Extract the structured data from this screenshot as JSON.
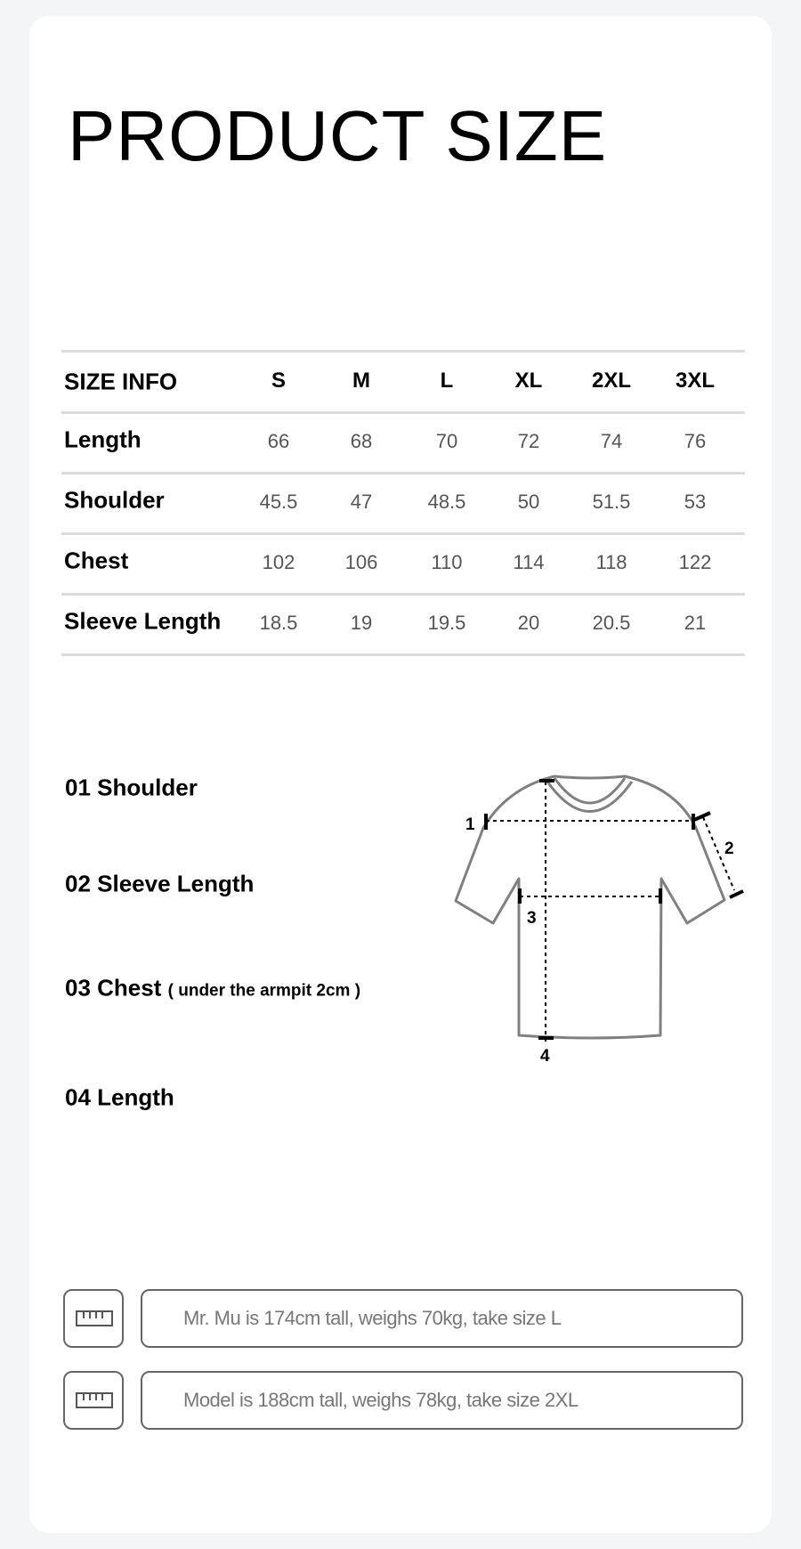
{
  "title": "PRODUCT SIZE",
  "table": {
    "header": [
      "SIZE INFO",
      "S",
      "M",
      "L",
      "XL",
      "2XL",
      "3XL"
    ],
    "rows": [
      {
        "label": "Length",
        "values": [
          "66",
          "68",
          "70",
          "72",
          "74",
          "76"
        ]
      },
      {
        "label": "Shoulder",
        "values": [
          "45.5",
          "47",
          "48.5",
          "50",
          "51.5",
          "53"
        ]
      },
      {
        "label": "Chest",
        "values": [
          "102",
          "106",
          "110",
          "114",
          "118",
          "122"
        ]
      },
      {
        "label": "Sleeve Length",
        "values": [
          "18.5",
          "19",
          "19.5",
          "20",
          "20.5",
          "21"
        ]
      }
    ]
  },
  "legend": [
    {
      "label": "01 Shoulder"
    },
    {
      "label": "02 Sleeve Length"
    },
    {
      "label": "03 Chest",
      "note": "( under the armpit 2cm )"
    },
    {
      "label": "04 Length"
    }
  ],
  "diagram": {
    "markers": [
      "1",
      "2",
      "3",
      "4"
    ],
    "icon": "t-shirt-outline"
  },
  "models": [
    {
      "icon": "ruler-icon",
      "text": "Mr. Mu is 174cm tall, weighs 70kg, take size L"
    },
    {
      "icon": "ruler-icon",
      "text": "Model is 188cm tall, weighs 78kg, take size 2XL"
    }
  ],
  "colors": {
    "background": "#f4f5f7",
    "card": "#ffffff",
    "divider": "#dcdcdc",
    "outline": "#808080"
  }
}
